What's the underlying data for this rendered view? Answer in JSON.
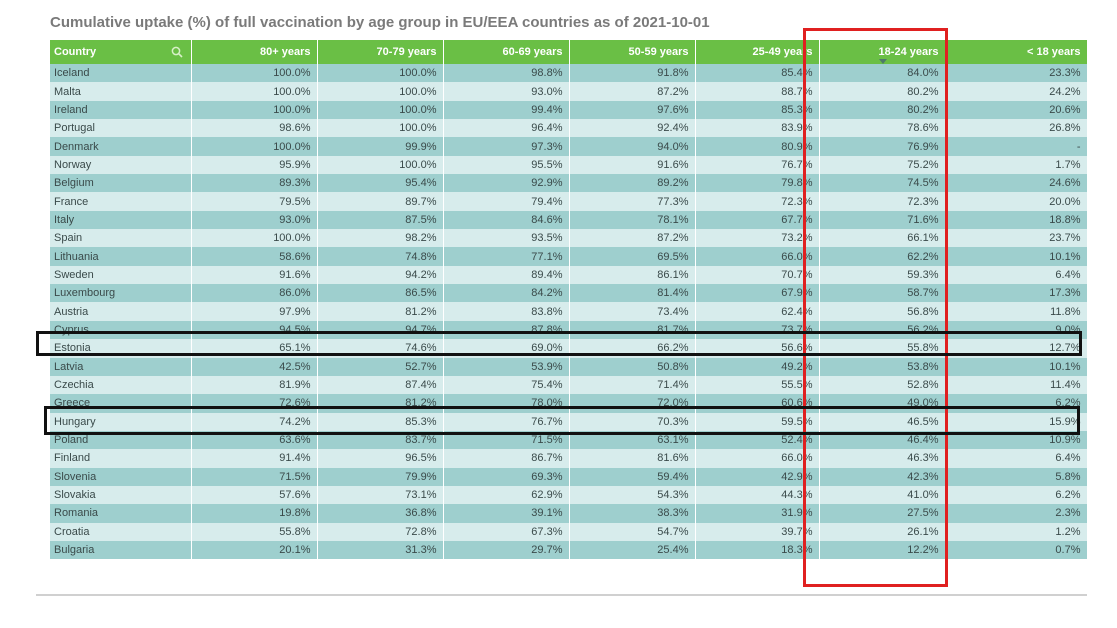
{
  "title": "Cumulative uptake (%) of full vaccination by age group in EU/EEA countries as of 2021-10-01",
  "chart_data": {
    "type": "table",
    "columns": [
      "Country",
      "80+ years",
      "70-79 years",
      "60-69 years",
      "50-59 years",
      "25-49 years",
      "18-24 years",
      "< 18 years"
    ],
    "sorted_by": "18-24 years",
    "rows": [
      [
        "Iceland",
        "100.0%",
        "100.0%",
        "98.8%",
        "91.8%",
        "85.4%",
        "84.0%",
        "23.3%"
      ],
      [
        "Malta",
        "100.0%",
        "100.0%",
        "93.0%",
        "87.2%",
        "88.7%",
        "80.2%",
        "24.2%"
      ],
      [
        "Ireland",
        "100.0%",
        "100.0%",
        "99.4%",
        "97.6%",
        "85.3%",
        "80.2%",
        "20.6%"
      ],
      [
        "Portugal",
        "98.6%",
        "100.0%",
        "96.4%",
        "92.4%",
        "83.9%",
        "78.6%",
        "26.8%"
      ],
      [
        "Denmark",
        "100.0%",
        "99.9%",
        "97.3%",
        "94.0%",
        "80.9%",
        "76.9%",
        "-"
      ],
      [
        "Norway",
        "95.9%",
        "100.0%",
        "95.5%",
        "91.6%",
        "76.7%",
        "75.2%",
        "1.7%"
      ],
      [
        "Belgium",
        "89.3%",
        "95.4%",
        "92.9%",
        "89.2%",
        "79.8%",
        "74.5%",
        "24.6%"
      ],
      [
        "France",
        "79.5%",
        "89.7%",
        "79.4%",
        "77.3%",
        "72.3%",
        "72.3%",
        "20.0%"
      ],
      [
        "Italy",
        "93.0%",
        "87.5%",
        "84.6%",
        "78.1%",
        "67.7%",
        "71.6%",
        "18.8%"
      ],
      [
        "Spain",
        "100.0%",
        "98.2%",
        "93.5%",
        "87.2%",
        "73.2%",
        "66.1%",
        "23.7%"
      ],
      [
        "Lithuania",
        "58.6%",
        "74.8%",
        "77.1%",
        "69.5%",
        "66.0%",
        "62.2%",
        "10.1%"
      ],
      [
        "Sweden",
        "91.6%",
        "94.2%",
        "89.4%",
        "86.1%",
        "70.7%",
        "59.3%",
        "6.4%"
      ],
      [
        "Luxembourg",
        "86.0%",
        "86.5%",
        "84.2%",
        "81.4%",
        "67.9%",
        "58.7%",
        "17.3%"
      ],
      [
        "Austria",
        "97.9%",
        "81.2%",
        "83.8%",
        "73.4%",
        "62.4%",
        "56.8%",
        "11.8%"
      ],
      [
        "Cyprus",
        "94.5%",
        "94.7%",
        "87.8%",
        "81.7%",
        "73.7%",
        "56.2%",
        "9.0%"
      ],
      [
        "Estonia",
        "65.1%",
        "74.6%",
        "69.0%",
        "66.2%",
        "56.6%",
        "55.8%",
        "12.7%"
      ],
      [
        "Latvia",
        "42.5%",
        "52.7%",
        "53.9%",
        "50.8%",
        "49.2%",
        "53.8%",
        "10.1%"
      ],
      [
        "Czechia",
        "81.9%",
        "87.4%",
        "75.4%",
        "71.4%",
        "55.5%",
        "52.8%",
        "11.4%"
      ],
      [
        "Greece",
        "72.6%",
        "81.2%",
        "78.0%",
        "72.0%",
        "60.6%",
        "49.0%",
        "6.2%"
      ],
      [
        "Hungary",
        "74.2%",
        "85.3%",
        "76.7%",
        "70.3%",
        "59.5%",
        "46.5%",
        "15.9%"
      ],
      [
        "Poland",
        "63.6%",
        "83.7%",
        "71.5%",
        "63.1%",
        "52.4%",
        "46.4%",
        "10.9%"
      ],
      [
        "Finland",
        "91.4%",
        "96.5%",
        "86.7%",
        "81.6%",
        "66.0%",
        "46.3%",
        "6.4%"
      ],
      [
        "Slovenia",
        "71.5%",
        "79.9%",
        "69.3%",
        "59.4%",
        "42.9%",
        "42.3%",
        "5.8%"
      ],
      [
        "Slovakia",
        "57.6%",
        "73.1%",
        "62.9%",
        "54.3%",
        "44.3%",
        "41.0%",
        "6.2%"
      ],
      [
        "Romania",
        "19.8%",
        "36.8%",
        "39.1%",
        "38.3%",
        "31.9%",
        "27.5%",
        "2.3%"
      ],
      [
        "Croatia",
        "55.8%",
        "72.8%",
        "67.3%",
        "54.7%",
        "39.7%",
        "26.1%",
        "1.2%"
      ],
      [
        "Bulgaria",
        "20.1%",
        "31.3%",
        "29.7%",
        "25.4%",
        "18.3%",
        "12.2%",
        "0.7%"
      ]
    ]
  },
  "icons": {
    "search": "search-icon",
    "sort": "sort-descending-icon"
  },
  "colors": {
    "header": "#6abf45",
    "row_odd": "#9ecfce",
    "row_even": "#d7ecec",
    "highlight_column": "#e02020",
    "highlight_rows": "#111111"
  }
}
